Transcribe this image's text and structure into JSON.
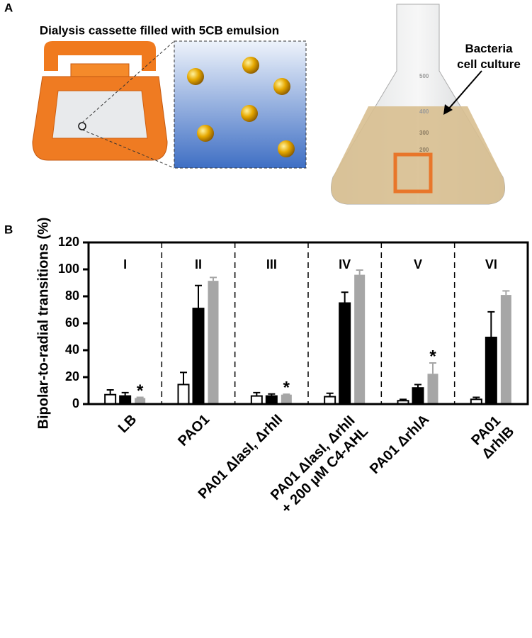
{
  "panel_a": {
    "label": "A",
    "cassette_caption": "Dialysis cassette filled with 5CB emulsion",
    "flask_caption": "Bacteria cell culture",
    "flask_marks": [
      "500",
      "400",
      "300",
      "200"
    ]
  },
  "panel_b_label": "B",
  "chart_data": {
    "type": "bar",
    "y_label": "Bipolar-to-radial transitions (%)",
    "categories": [
      "LB",
      "PAO1",
      "PA01 ΔlasI, ΔrhlI",
      "PA01 ΔlasI, ΔrhlI\n+ 200 µM  C4-AHL",
      "PA01 ΔrhlA",
      "PA01 ΔrhlB"
    ],
    "group_labels": [
      "I",
      "II",
      "III",
      "IV",
      "V",
      "VI"
    ],
    "series": [
      {
        "color": "#ffffff",
        "values": [
          7,
          14.5,
          6,
          5.5,
          2.5,
          3.5
        ],
        "errors": [
          3.5,
          9,
          2.5,
          2.5,
          1,
          1.5
        ]
      },
      {
        "color": "#000000",
        "values": [
          6,
          71,
          6,
          75,
          12,
          49.5
        ],
        "errors": [
          2.5,
          17,
          1.5,
          8,
          2.5,
          19
        ]
      },
      {
        "color": "#a6a6a6",
        "values": [
          4.5,
          91.5,
          7,
          96,
          22.5,
          81
        ],
        "errors": [
          0.5,
          2.5,
          0.3,
          3.5,
          8,
          3
        ]
      }
    ],
    "annotations": [
      {
        "text": "*",
        "category": 0,
        "series": 2
      },
      {
        "text": "*",
        "category": 2,
        "series": 2
      },
      {
        "text": "*",
        "category": 4,
        "series": 2
      }
    ],
    "ylim": [
      0,
      120
    ],
    "yticks": [
      0,
      20,
      40,
      60,
      80,
      100,
      120
    ]
  }
}
